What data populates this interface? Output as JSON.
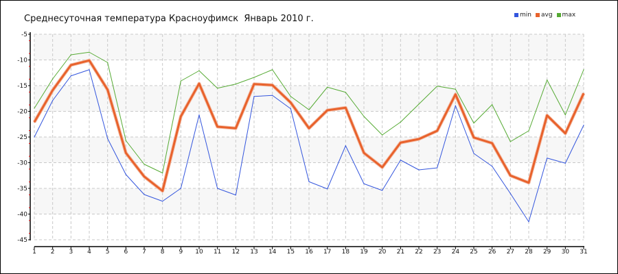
{
  "chart_data": {
    "type": "line",
    "title": "Среднесуточная температура Красноуфимск  Январь 2010 г.",
    "xlabel": "",
    "ylabel": "",
    "x": [
      1,
      2,
      3,
      4,
      5,
      6,
      7,
      8,
      9,
      10,
      11,
      12,
      13,
      14,
      15,
      16,
      17,
      18,
      19,
      20,
      21,
      22,
      23,
      24,
      25,
      26,
      27,
      28,
      29,
      30,
      31
    ],
    "ylim": [
      -45,
      -5
    ],
    "yticks": [
      -5,
      -10,
      -15,
      -20,
      -25,
      -30,
      -35,
      -40,
      -45
    ],
    "grid": true,
    "legend_position": "top-right",
    "series": [
      {
        "name": "min",
        "color": "#3355dd",
        "values": [
          -25,
          -17.9,
          -13.1,
          -11.9,
          -25.3,
          -32.3,
          -36.2,
          -37.5,
          -35,
          -20.7,
          -35,
          -36.3,
          -17.1,
          -16.9,
          -19.5,
          -33.7,
          -35.1,
          -26.7,
          -34.1,
          -35.4,
          -29.5,
          -31.4,
          -31,
          -18.9,
          -28.2,
          -30.7,
          -36,
          -41.5,
          -29.1,
          -30.1,
          -22.7
        ]
      },
      {
        "name": "avg",
        "color": "#e8622c",
        "values": [
          -22.1,
          -15.9,
          -11,
          -10.1,
          -15.8,
          -28.1,
          -32.7,
          -35.5,
          -21,
          -14.6,
          -23,
          -23.3,
          -14.7,
          -14.9,
          -18.3,
          -23.3,
          -19.8,
          -19.3,
          -28.1,
          -30.9,
          -26.1,
          -25.4,
          -23.8,
          -16.7,
          -25.1,
          -26.2,
          -32.5,
          -33.9,
          -20.8,
          -24.3,
          -16.5
        ]
      },
      {
        "name": "max",
        "color": "#55aa33",
        "values": [
          -19.4,
          -13.7,
          -9,
          -8.5,
          -10.5,
          -25.7,
          -30.3,
          -32,
          -14.1,
          -12.1,
          -15.5,
          -14.7,
          -13.4,
          -11.9,
          -17.1,
          -19.7,
          -15.3,
          -16.3,
          -21,
          -24.6,
          -22.1,
          -18.6,
          -15.1,
          -15.7,
          -22.3,
          -18.7,
          -25.9,
          -23.8,
          -13.9,
          -20.7,
          -11.9
        ]
      }
    ]
  }
}
